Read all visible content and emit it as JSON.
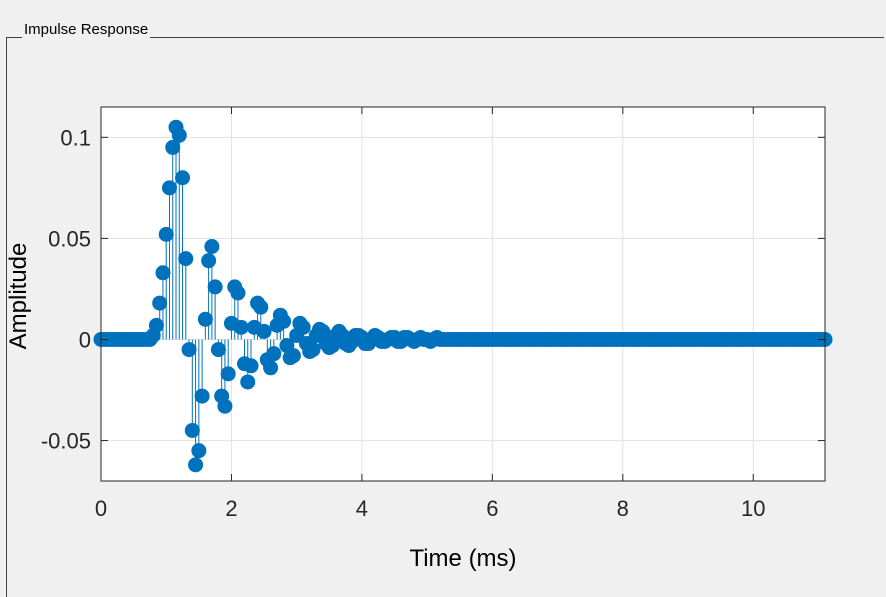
{
  "panel": {
    "title": "Impulse Response"
  },
  "chart_data": {
    "type": "stem",
    "xlabel": "Time (ms)",
    "ylabel": "Amplitude",
    "xlim": [
      0,
      11.1
    ],
    "ylim": [
      -0.07,
      0.115
    ],
    "xticks": [
      0,
      2,
      4,
      6,
      8,
      10
    ],
    "yticks": [
      -0.05,
      0,
      0.05,
      0.1
    ],
    "xtick_labels": [
      "0",
      "2",
      "4",
      "6",
      "8",
      "10"
    ],
    "ytick_labels": [
      "-0.05",
      "0",
      "0.05",
      "0.1"
    ],
    "grid": true,
    "color": "#0072BD",
    "sample_interval_ms": 0.05,
    "x_end_ms": 11.1,
    "points": [
      [
        0.8,
        0.002
      ],
      [
        0.85,
        0.007
      ],
      [
        0.9,
        0.018
      ],
      [
        0.95,
        0.033
      ],
      [
        1.0,
        0.052
      ],
      [
        1.05,
        0.075
      ],
      [
        1.1,
        0.095
      ],
      [
        1.15,
        0.105
      ],
      [
        1.2,
        0.101
      ],
      [
        1.25,
        0.08
      ],
      [
        1.3,
        0.04
      ],
      [
        1.35,
        -0.005
      ],
      [
        1.4,
        -0.045
      ],
      [
        1.45,
        -0.062
      ],
      [
        1.5,
        -0.055
      ],
      [
        1.55,
        -0.028
      ],
      [
        1.6,
        0.01
      ],
      [
        1.65,
        0.039
      ],
      [
        1.7,
        0.046
      ],
      [
        1.75,
        0.026
      ],
      [
        1.8,
        -0.005
      ],
      [
        1.85,
        -0.028
      ],
      [
        1.9,
        -0.033
      ],
      [
        1.95,
        -0.017
      ],
      [
        2.0,
        0.008
      ],
      [
        2.05,
        0.026
      ],
      [
        2.1,
        0.023
      ],
      [
        2.15,
        0.006
      ],
      [
        2.2,
        -0.012
      ],
      [
        2.25,
        -0.021
      ],
      [
        2.3,
        -0.013
      ],
      [
        2.35,
        0.006
      ],
      [
        2.4,
        0.018
      ],
      [
        2.45,
        0.016
      ],
      [
        2.5,
        0.004
      ],
      [
        2.55,
        -0.01
      ],
      [
        2.6,
        -0.014
      ],
      [
        2.65,
        -0.007
      ],
      [
        2.7,
        0.007
      ],
      [
        2.75,
        0.012
      ],
      [
        2.8,
        0.009
      ],
      [
        2.85,
        -0.003
      ],
      [
        2.9,
        -0.009
      ],
      [
        2.95,
        -0.008
      ],
      [
        3.0,
        0.002
      ],
      [
        3.05,
        0.008
      ],
      [
        3.1,
        0.006
      ],
      [
        3.15,
        -0.002
      ],
      [
        3.2,
        -0.006
      ],
      [
        3.25,
        -0.005
      ],
      [
        3.3,
        0.002
      ],
      [
        3.35,
        0.005
      ],
      [
        3.4,
        0.004
      ],
      [
        3.45,
        -0.002
      ],
      [
        3.5,
        -0.004
      ],
      [
        3.55,
        -0.003
      ],
      [
        3.6,
        0.002
      ],
      [
        3.65,
        0.004
      ],
      [
        3.7,
        0.002
      ],
      [
        3.75,
        -0.002
      ],
      [
        3.8,
        -0.003
      ],
      [
        3.85,
        -0.001
      ],
      [
        3.9,
        0.002
      ],
      [
        3.95,
        0.002
      ],
      [
        4.0,
        0.001
      ],
      [
        4.05,
        -0.002
      ],
      [
        4.1,
        -0.002
      ],
      [
        4.15,
        0.0
      ],
      [
        4.2,
        0.002
      ],
      [
        4.25,
        0.001
      ],
      [
        4.3,
        -0.001
      ],
      [
        4.35,
        -0.001
      ],
      [
        4.4,
        0.0
      ],
      [
        4.45,
        0.001
      ],
      [
        4.5,
        0.001
      ],
      [
        4.55,
        -0.001
      ],
      [
        4.6,
        -0.001
      ],
      [
        4.65,
        0.001
      ],
      [
        4.7,
        0.001
      ],
      [
        4.75,
        0.0
      ],
      [
        4.8,
        -0.001
      ],
      [
        4.85,
        0.0
      ],
      [
        4.9,
        0.001
      ],
      [
        4.95,
        0.0
      ],
      [
        5.0,
        0.0
      ],
      [
        5.05,
        -0.001
      ],
      [
        5.1,
        0.0
      ],
      [
        5.15,
        0.001
      ],
      [
        5.2,
        0.0
      ],
      [
        5.25,
        0.0
      ],
      [
        5.3,
        0.0
      ],
      [
        5.35,
        0.0
      ],
      [
        5.4,
        0.0
      ],
      [
        5.45,
        0.0
      ],
      [
        5.5,
        0.0
      ]
    ]
  }
}
